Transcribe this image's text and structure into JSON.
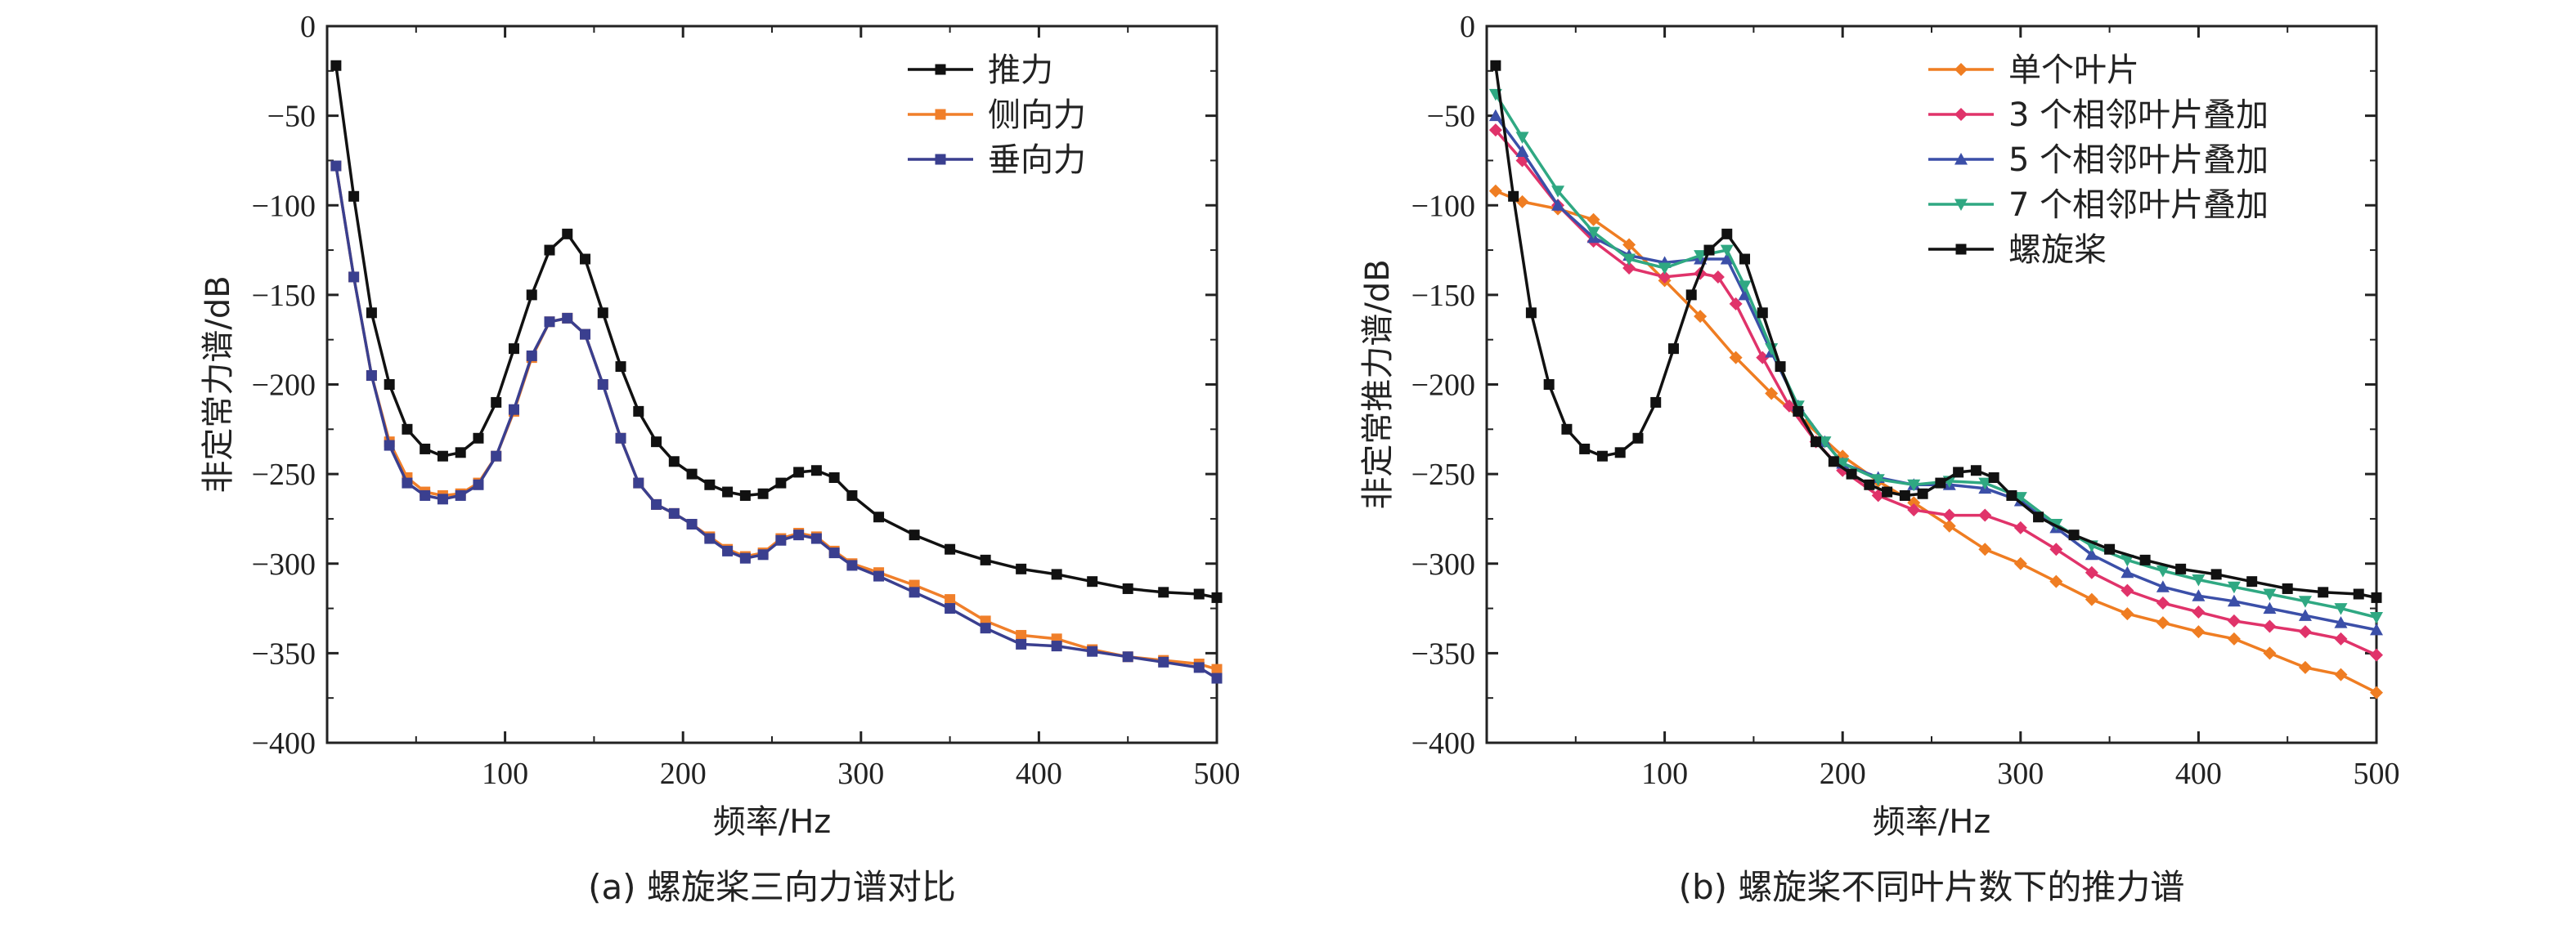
{
  "chart_data": [
    {
      "type": "line",
      "caption": "(a) 螺旋桨三向力谱对比",
      "xlabel": "频率/Hz",
      "ylabel": "非定常力谱/dB",
      "xlim": [
        0,
        500
      ],
      "ylim": [
        -400,
        0
      ],
      "xticks": [
        100,
        200,
        300,
        400,
        500
      ],
      "yticks": [
        0,
        -50,
        -100,
        -150,
        -200,
        -250,
        -300,
        -350,
        -400
      ],
      "legend_position": "top-right",
      "series": [
        {
          "name": "推力",
          "color": "#111111",
          "marker": "square",
          "x": [
            5,
            15,
            25,
            35,
            45,
            55,
            65,
            75,
            85,
            95,
            105,
            115,
            125,
            135,
            145,
            155,
            165,
            175,
            185,
            195,
            205,
            215,
            225,
            235,
            245,
            255,
            265,
            275,
            285,
            295,
            310,
            330,
            350,
            370,
            390,
            410,
            430,
            450,
            470,
            490,
            500
          ],
          "y": [
            -22,
            -95,
            -160,
            -200,
            -225,
            -236,
            -240,
            -238,
            -230,
            -210,
            -180,
            -150,
            -125,
            -116,
            -130,
            -160,
            -190,
            -215,
            -232,
            -243,
            -250,
            -256,
            -260,
            -262,
            -261,
            -255,
            -249,
            -248,
            -252,
            -262,
            -274,
            -284,
            -292,
            -298,
            -303,
            -306,
            -310,
            -314,
            -316,
            -317,
            -319
          ]
        },
        {
          "name": "侧向力",
          "color": "#f07f2a",
          "marker": "square",
          "x": [
            5,
            15,
            25,
            35,
            45,
            55,
            65,
            75,
            85,
            95,
            105,
            115,
            125,
            135,
            145,
            155,
            165,
            175,
            185,
            195,
            205,
            215,
            225,
            235,
            245,
            255,
            265,
            275,
            285,
            295,
            310,
            330,
            350,
            370,
            390,
            410,
            430,
            450,
            470,
            490,
            500
          ],
          "y": [
            -78,
            -140,
            -195,
            -232,
            -252,
            -260,
            -262,
            -261,
            -255,
            -240,
            -215,
            -185,
            -165,
            -163,
            -172,
            -200,
            -230,
            -255,
            -267,
            -272,
            -278,
            -285,
            -292,
            -296,
            -294,
            -286,
            -283,
            -285,
            -293,
            -300,
            -305,
            -312,
            -320,
            -332,
            -340,
            -342,
            -348,
            -352,
            -354,
            -356,
            -359
          ]
        },
        {
          "name": "垂向力",
          "color": "#3a3f8f",
          "marker": "square",
          "x": [
            5,
            15,
            25,
            35,
            45,
            55,
            65,
            75,
            85,
            95,
            105,
            115,
            125,
            135,
            145,
            155,
            165,
            175,
            185,
            195,
            205,
            215,
            225,
            235,
            245,
            255,
            265,
            275,
            285,
            295,
            310,
            330,
            350,
            370,
            390,
            410,
            430,
            450,
            470,
            490,
            500
          ],
          "y": [
            -78,
            -140,
            -195,
            -234,
            -255,
            -262,
            -264,
            -262,
            -256,
            -240,
            -214,
            -184,
            -165,
            -163,
            -172,
            -200,
            -230,
            -255,
            -267,
            -272,
            -278,
            -286,
            -293,
            -297,
            -295,
            -287,
            -284,
            -286,
            -294,
            -301,
            -307,
            -316,
            -325,
            -336,
            -345,
            -346,
            -349,
            -352,
            -355,
            -358,
            -364
          ]
        }
      ]
    },
    {
      "type": "line",
      "caption": "(b) 螺旋桨不同叶片数下的推力谱",
      "xlabel": "频率/Hz",
      "ylabel": "非定常推力谱/dB",
      "xlim": [
        0,
        500
      ],
      "ylim": [
        -400,
        0
      ],
      "xticks": [
        100,
        200,
        300,
        400,
        500
      ],
      "yticks": [
        0,
        -50,
        -100,
        -150,
        -200,
        -250,
        -300,
        -350,
        -400
      ],
      "legend_position": "top-right",
      "series": [
        {
          "name": "单个叶片",
          "color": "#ef7d22",
          "marker": "diamond",
          "x": [
            5,
            20,
            40,
            60,
            80,
            100,
            120,
            140,
            160,
            180,
            200,
            220,
            240,
            260,
            280,
            300,
            320,
            340,
            360,
            380,
            400,
            420,
            440,
            460,
            480,
            500
          ],
          "y": [
            -92,
            -98,
            -102,
            -108,
            -122,
            -142,
            -162,
            -185,
            -205,
            -222,
            -240,
            -254,
            -266,
            -279,
            -292,
            -300,
            -310,
            -320,
            -328,
            -333,
            -338,
            -342,
            -350,
            -358,
            -362,
            -372
          ]
        },
        {
          "name": "3 个相邻叶片叠加",
          "color": "#e0336a",
          "marker": "diamond",
          "x": [
            5,
            20,
            40,
            60,
            80,
            100,
            120,
            130,
            140,
            155,
            170,
            185,
            200,
            220,
            240,
            260,
            280,
            300,
            320,
            340,
            360,
            380,
            400,
            420,
            440,
            460,
            480,
            500
          ],
          "y": [
            -58,
            -75,
            -100,
            -120,
            -135,
            -140,
            -138,
            -140,
            -155,
            -185,
            -212,
            -232,
            -248,
            -262,
            -270,
            -273,
            -273,
            -280,
            -292,
            -305,
            -315,
            -322,
            -327,
            -332,
            -335,
            -338,
            -342,
            -351
          ]
        },
        {
          "name": "5 个相邻叶片叠加",
          "color": "#3b4fa8",
          "marker": "triangle-up",
          "x": [
            5,
            20,
            40,
            60,
            80,
            100,
            120,
            135,
            145,
            160,
            175,
            190,
            200,
            220,
            240,
            260,
            280,
            300,
            320,
            340,
            360,
            380,
            400,
            420,
            440,
            460,
            480,
            500
          ],
          "y": [
            -50,
            -70,
            -100,
            -118,
            -128,
            -132,
            -130,
            -130,
            -150,
            -182,
            -212,
            -232,
            -244,
            -252,
            -256,
            -256,
            -258,
            -265,
            -280,
            -295,
            -305,
            -313,
            -318,
            -321,
            -325,
            -329,
            -333,
            -337
          ]
        },
        {
          "name": "7 个相邻叶片叠加",
          "color": "#2fa882",
          "marker": "triangle-down",
          "x": [
            5,
            20,
            40,
            60,
            80,
            100,
            120,
            135,
            145,
            160,
            175,
            190,
            200,
            220,
            240,
            260,
            280,
            300,
            320,
            340,
            360,
            380,
            400,
            420,
            440,
            460,
            480,
            500
          ],
          "y": [
            -38,
            -62,
            -92,
            -115,
            -130,
            -135,
            -128,
            -125,
            -145,
            -180,
            -212,
            -232,
            -244,
            -253,
            -256,
            -254,
            -255,
            -263,
            -278,
            -290,
            -298,
            -304,
            -309,
            -313,
            -317,
            -321,
            -325,
            -330
          ]
        },
        {
          "name": "螺旋桨",
          "color": "#111111",
          "marker": "square",
          "x": [
            5,
            15,
            25,
            35,
            45,
            55,
            65,
            75,
            85,
            95,
            105,
            115,
            125,
            135,
            145,
            155,
            165,
            175,
            185,
            195,
            205,
            215,
            225,
            235,
            245,
            255,
            265,
            275,
            285,
            295,
            310,
            330,
            350,
            370,
            390,
            410,
            430,
            450,
            470,
            490,
            500
          ],
          "y": [
            -22,
            -95,
            -160,
            -200,
            -225,
            -236,
            -240,
            -238,
            -230,
            -210,
            -180,
            -150,
            -125,
            -116,
            -130,
            -160,
            -190,
            -215,
            -232,
            -243,
            -250,
            -256,
            -260,
            -262,
            -261,
            -255,
            -249,
            -248,
            -252,
            -262,
            -274,
            -284,
            -292,
            -298,
            -303,
            -306,
            -310,
            -314,
            -316,
            -317,
            -319
          ]
        }
      ]
    }
  ]
}
